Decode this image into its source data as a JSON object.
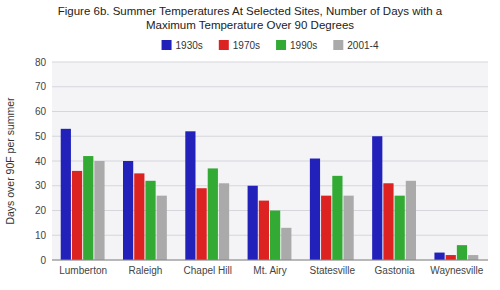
{
  "chart_data": {
    "type": "bar",
    "title": "Figure 6b.  Summer Temperatures At Selected Sites, Number of Days with a\nMaximum Temperature Over 90 Degrees",
    "y_label": "Days over 90F per summer",
    "categories": [
      "Lumberton",
      "Raleigh",
      "Chapel Hill",
      "Mt. Airy",
      "Statesville",
      "Gastonia",
      "Waynesville"
    ],
    "series": [
      {
        "name": "1930s",
        "color": "#2222bb",
        "values": [
          53,
          40,
          52,
          30,
          41,
          50,
          3
        ]
      },
      {
        "name": "1970s",
        "color": "#dd2222",
        "values": [
          36,
          35,
          29,
          24,
          26,
          31,
          2
        ]
      },
      {
        "name": "1990s",
        "color": "#33aa33",
        "values": [
          42,
          32,
          37,
          20,
          34,
          26,
          6
        ]
      },
      {
        "name": "2001-4",
        "color": "#aaaaaa",
        "values": [
          40,
          26,
          31,
          13,
          26,
          32,
          2
        ]
      }
    ],
    "ylim": [
      0,
      80
    ],
    "yticks": [
      0,
      10,
      20,
      30,
      40,
      50,
      60,
      70,
      80
    ],
    "grid": true,
    "legend": "top"
  }
}
